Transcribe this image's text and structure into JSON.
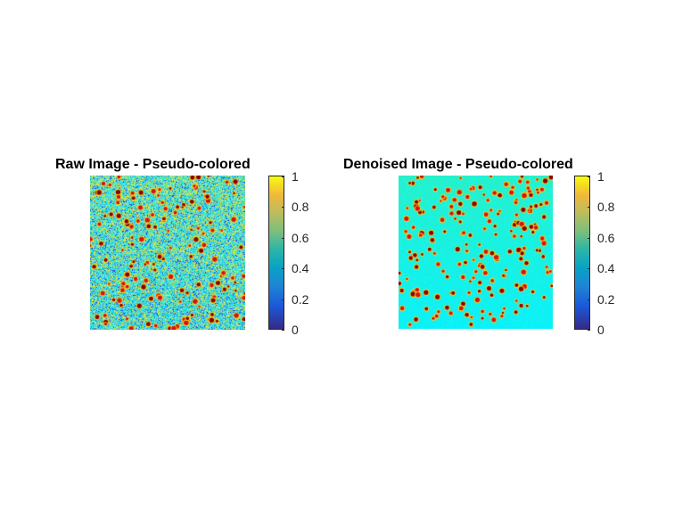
{
  "panels": [
    {
      "title": "Raw Image - Pseudo-colored",
      "kind": "raw",
      "colorbar": {
        "ticks": [
          "0",
          "0.2",
          "0.4",
          "0.6",
          "0.8",
          "1"
        ],
        "min": 0,
        "max": 1
      }
    },
    {
      "title": "Denoised Image - Pseudo-colored",
      "kind": "denoised",
      "colorbar": {
        "ticks": [
          "0",
          "0.2",
          "0.4",
          "0.6",
          "0.8",
          "1"
        ],
        "min": 0,
        "max": 1
      }
    }
  ],
  "colormap": "jet-like",
  "colors": {
    "background": "#ffffff",
    "raw_base": "#3cc8c8",
    "denoised_base": "#19f0e0",
    "spot_core": "#8b0000",
    "spot_ring": "#ffd21e"
  }
}
